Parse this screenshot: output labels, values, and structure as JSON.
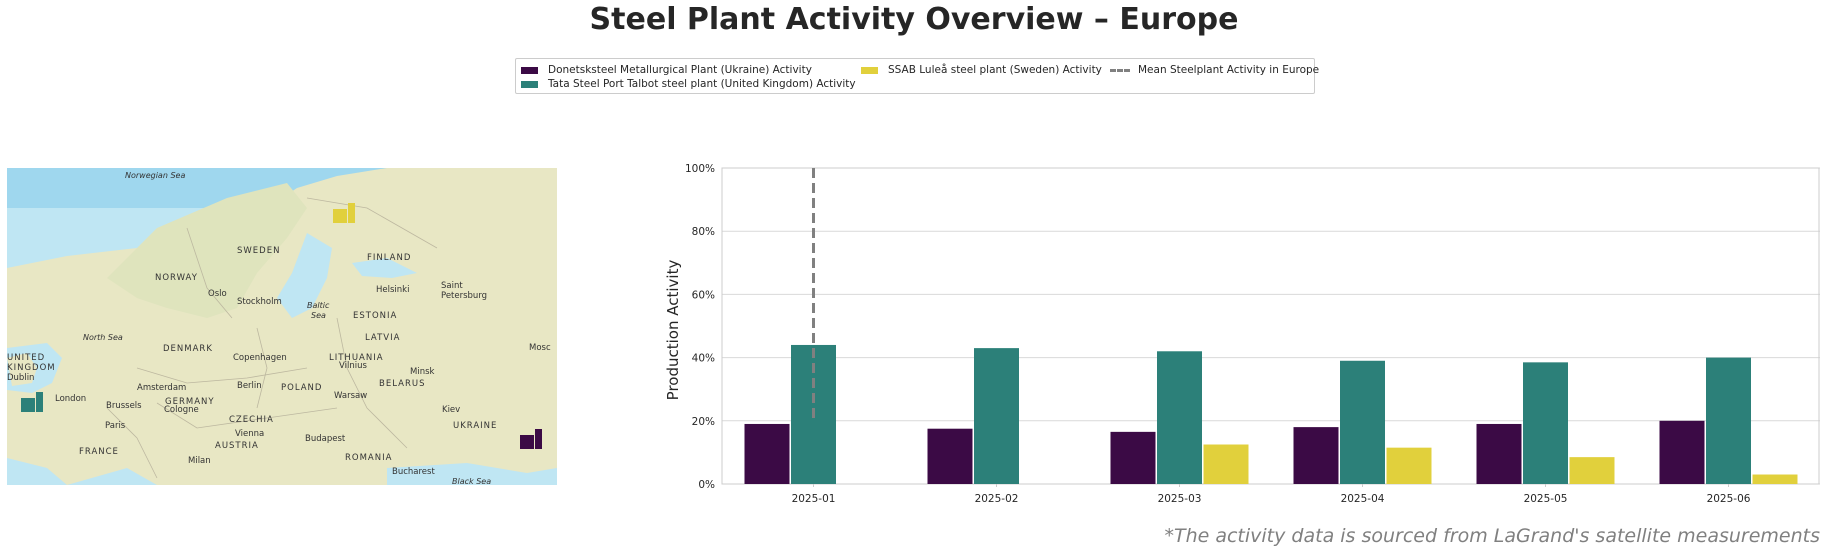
{
  "title": "Steel Plant Activity Overview – Europe",
  "footnote": "*The activity data is sourced from LaGrand's satellite measurements",
  "legend": {
    "items": [
      {
        "label": "Donetsksteel Metallurgical Plant (Ukraine) Activity",
        "color": "#3b0a45",
        "kind": "bar"
      },
      {
        "label": "Tata Steel Port Talbot steel plant (United Kingdom) Activity",
        "color": "#2c8079",
        "kind": "bar"
      },
      {
        "label": "SSAB Luleå steel plant (Sweden) Activity",
        "color": "#e1d03c",
        "kind": "bar"
      },
      {
        "label": "Mean Steelplant Activity in Europe",
        "color": "#808080",
        "kind": "dashed-line"
      }
    ]
  },
  "map": {
    "labels": {
      "norwegian_sea": "Norwegian Sea",
      "sweden": "SWEDEN",
      "finland": "FINLAND",
      "norway": "NORWAY",
      "oslo": "Oslo",
      "stockholm": "Stockholm",
      "helsinki": "Helsinki",
      "saint": "Saint",
      "petersburg": "Petersburg",
      "baltic": "Baltic",
      "sea": "Sea",
      "estonia": "ESTONIA",
      "north_sea": "North Sea",
      "latvia": "LATVIA",
      "denmark": "DENMARK",
      "copenhagen": "Copenhagen",
      "lithuania": "LITHUANIA",
      "vilnius": "Vilnius",
      "minsk": "Minsk",
      "mosc": "Mosc",
      "united": "UNITED",
      "kingdom": "KINGDOM",
      "dublin": "Dublin",
      "amsterdam": "Amsterdam",
      "berlin": "Berlin",
      "poland": "POLAND",
      "belarus": "BELARUS",
      "london": "London",
      "brussels": "Brussels",
      "germany": "GERMANY",
      "warsaw": "Warsaw",
      "cologne": "Cologne",
      "kiev": "Kiev",
      "paris": "Paris",
      "czechia": "CZECHIA",
      "ukraine": "UKRAINE",
      "vienna": "Vienna",
      "austria": "AUSTRIA",
      "budapest": "Budapest",
      "france": "FRANCE",
      "romania": "ROMANIA",
      "milan": "Milan",
      "bucharest": "Bucharest",
      "black_sea": "Black Sea"
    },
    "markers": [
      {
        "name": "ssab-lulea-marker",
        "color": "#e1d03c"
      },
      {
        "name": "port-talbot-marker",
        "color": "#2c8079"
      },
      {
        "name": "donetsk-marker",
        "color": "#3b0a45"
      }
    ]
  },
  "chart_data": {
    "type": "bar",
    "categories": [
      "2025-01",
      "2025-02",
      "2025-03",
      "2025-04",
      "2025-05",
      "2025-06"
    ],
    "series": [
      {
        "name": "Donetsksteel Metallurgical Plant (Ukraine) Activity",
        "color": "#3b0a45",
        "values": [
          19,
          17.5,
          16.5,
          18,
          19,
          20
        ]
      },
      {
        "name": "Tata Steel Port Talbot steel plant (United Kingdom) Activity",
        "color": "#2c8079",
        "values": [
          44,
          43,
          42,
          39,
          38.5,
          40
        ]
      },
      {
        "name": "SSAB Luleå steel plant (Sweden) Activity",
        "color": "#e1d03c",
        "values": [
          0,
          0,
          12.5,
          11.5,
          8.5,
          3
        ]
      }
    ],
    "mean_line": {
      "name": "Mean Steelplant Activity in Europe",
      "x_category": "2025-01",
      "y_from": 20,
      "y_to": 100
    },
    "ylabel": "Production Activity",
    "xlabel": "",
    "ylim": [
      0,
      100
    ],
    "yticks": [
      0,
      20,
      40,
      60,
      80,
      100
    ],
    "ytick_labels": [
      "0%",
      "20%",
      "40%",
      "60%",
      "80%",
      "100%"
    ],
    "grid": true,
    "legend_position": "top-center"
  }
}
